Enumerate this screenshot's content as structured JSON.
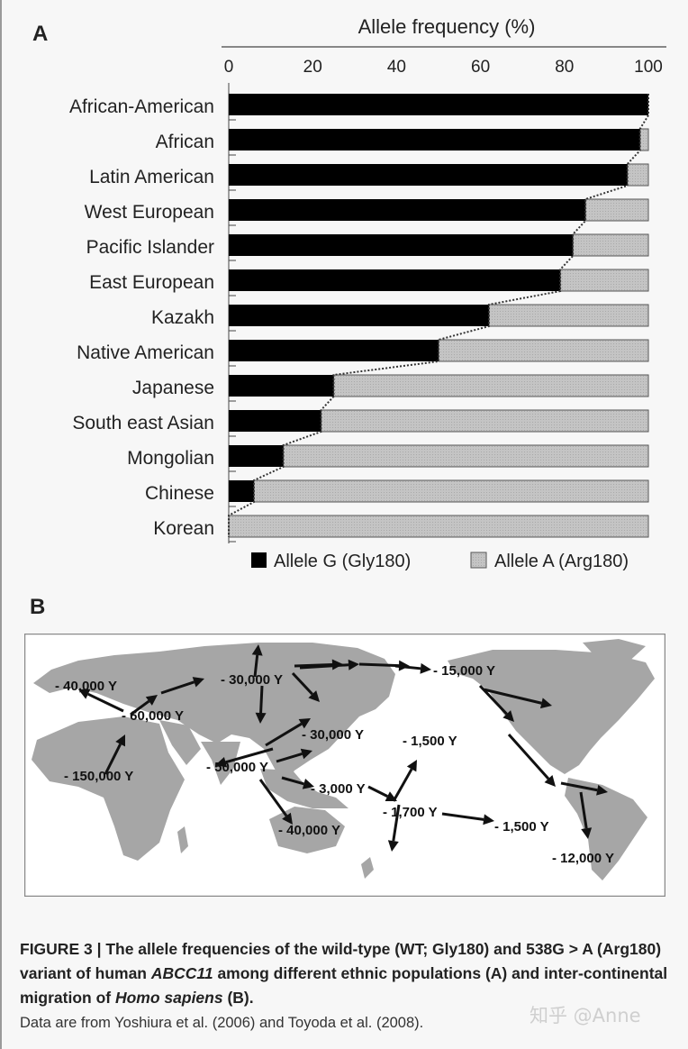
{
  "panel_a_label": "A",
  "panel_b_label": "B",
  "chart_data": {
    "type": "bar",
    "orientation": "horizontal",
    "stacked": true,
    "title": "Allele frequency (%)",
    "xlim": [
      0,
      100
    ],
    "x_ticks": [
      "0",
      "20",
      "40",
      "60",
      "80",
      "100"
    ],
    "categories": [
      "African-American",
      "African",
      "Latin American",
      "West European",
      "Pacific Islander",
      "East European",
      "Kazakh",
      "Native American",
      "Japanese",
      "South east Asian",
      "Mongolian",
      "Chinese",
      "Korean"
    ],
    "series": [
      {
        "name": "Allele G (Gly180)",
        "color": "#000000",
        "values": [
          100,
          98,
          95,
          85,
          82,
          79,
          62,
          50,
          25,
          22,
          13,
          6,
          0
        ]
      },
      {
        "name": "Allele A (Arg180)",
        "color": "#bdbdbd",
        "values": [
          0,
          2,
          5,
          15,
          18,
          21,
          38,
          50,
          75,
          78,
          87,
          94,
          100
        ]
      }
    ],
    "legend": "bottom",
    "grid": false
  },
  "map": {
    "colors": {
      "land": "#a6a6a6",
      "sea": "#ffffff",
      "arrow": "#111111"
    },
    "labels": [
      "40,000 Y",
      "60,000 Y",
      "30,000 Y",
      "15,000 Y",
      "150,000 Y",
      "30,000 Y",
      "1,500 Y",
      "50,000 Y",
      "3,000 Y",
      "1,700 Y",
      "1,500 Y",
      "40,000 Y",
      "12,000 Y"
    ]
  },
  "caption": {
    "bold_1": "FIGURE 3 | The allele frequencies of the wild-type (WT; Gly180) and 538G > A (Arg180) variant of human ",
    "bold_gene": "ABCC11",
    "bold_2": " among different ethnic populations (A) and inter-continental migration of ",
    "bold_species": "Homo sapiens",
    "bold_3": " (B).",
    "note": "Data are from Yoshiura et al. (2006) and Toyoda et al. (2008)."
  },
  "watermark": "知乎 @Anne"
}
